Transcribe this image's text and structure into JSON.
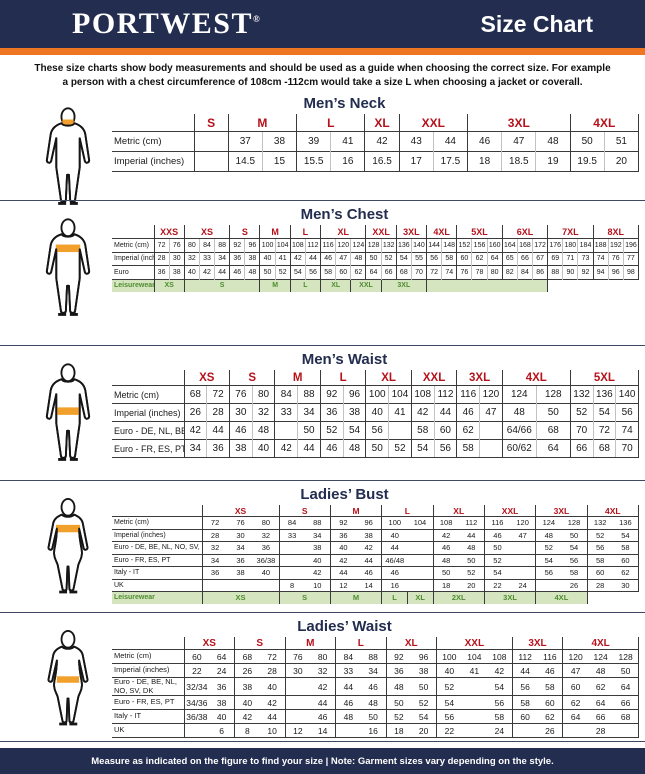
{
  "header": {
    "logo": "PORTWEST",
    "logo_reg": "®",
    "title": "Size Chart"
  },
  "intro": {
    "line1": "These size charts show body measurements and should be used as a guide when choosing the correct size. For example",
    "line2": "a person with a chest circumference of 108cm -112cm would take a size L when choosing a jacket or coverall."
  },
  "footer": {
    "text": "Measure as indicated on the figure to find your size  |  Note: Garment sizes vary depending on the style."
  },
  "colors": {
    "navy": "#232d4f",
    "orange": "#ee7623",
    "red": "#b6121b",
    "green_bg": "#d5e5c0",
    "green_text": "#4e8c2f",
    "band_orange": "#f2a02c"
  },
  "sections": [
    {
      "id": "mens-neck",
      "title": "Men’s Neck",
      "figure": "male",
      "band": "neck",
      "sub": true,
      "sizes": [
        {
          "label": "S",
          "span": 1
        },
        {
          "label": "M",
          "span": 2
        },
        {
          "label": "L",
          "span": 2
        },
        {
          "label": "XL",
          "span": 1
        },
        {
          "label": "XXL",
          "span": 2
        },
        {
          "label": "3XL",
          "span": 3
        },
        {
          "label": "4XL",
          "span": 2
        }
      ],
      "rows": [
        {
          "label": "Metric  (cm)",
          "cells": [
            "",
            "37",
            "38",
            "39",
            "41",
            "42",
            "43",
            "44",
            "46",
            "47",
            "48",
            "50",
            "51"
          ]
        },
        {
          "label": "Imperial (inches)",
          "cells": [
            "",
            "14.5",
            "15",
            "15.5",
            "16",
            "16.5",
            "17",
            "17.5",
            "18",
            "18.5",
            "19",
            "19.5",
            "20"
          ]
        }
      ]
    },
    {
      "id": "mens-chest",
      "title": "Men’s Chest",
      "figure": "male",
      "band": "chest",
      "sub": true,
      "sizes": [
        {
          "label": "XXS",
          "span": 2
        },
        {
          "label": "XS",
          "span": 3
        },
        {
          "label": "S",
          "span": 2
        },
        {
          "label": "M",
          "span": 2
        },
        {
          "label": "L",
          "span": 2
        },
        {
          "label": "XL",
          "span": 3
        },
        {
          "label": "XXL",
          "span": 2
        },
        {
          "label": "3XL",
          "span": 2
        },
        {
          "label": "4XL",
          "span": 2
        },
        {
          "label": "5XL",
          "span": 3
        },
        {
          "label": "6XL",
          "span": 3
        },
        {
          "label": "7XL",
          "span": 3
        },
        {
          "label": "8XL",
          "span": 3
        }
      ],
      "rows": [
        {
          "label": "Metric (cm)",
          "cells": [
            "72",
            "76",
            "80",
            "84",
            "88",
            "92",
            "96",
            "100",
            "104",
            "108",
            "112",
            "116",
            "120",
            "124",
            "128",
            "132",
            "136",
            "140",
            "144",
            "148",
            "152",
            "156",
            "160",
            "164",
            "168",
            "172",
            "176",
            "180",
            "184",
            "188",
            "192",
            "196"
          ]
        },
        {
          "label": "Imperial (inches)",
          "cells": [
            "28",
            "30",
            "32",
            "33",
            "34",
            "36",
            "38",
            "40",
            "41",
            "42",
            "44",
            "46",
            "47",
            "48",
            "50",
            "52",
            "54",
            "55",
            "56",
            "58",
            "60",
            "62",
            "64",
            "65",
            "66",
            "67",
            "69",
            "71",
            "73",
            "74",
            "76",
            "77"
          ]
        },
        {
          "label": "Euro",
          "cells": [
            "36",
            "38",
            "40",
            "42",
            "44",
            "46",
            "48",
            "50",
            "52",
            "54",
            "56",
            "58",
            "60",
            "62",
            "64",
            "66",
            "68",
            "70",
            "72",
            "74",
            "76",
            "78",
            "80",
            "82",
            "84",
            "86",
            "88",
            "90",
            "92",
            "94",
            "96",
            "98"
          ]
        }
      ],
      "leisure": {
        "label": "Leisurewear",
        "cells": [
          {
            "label": "XS",
            "span": 2
          },
          {
            "label": "S",
            "span": 5
          },
          {
            "label": "M",
            "span": 2
          },
          {
            "label": "L",
            "span": 2
          },
          {
            "label": "XL",
            "span": 2
          },
          {
            "label": "XXL",
            "span": 2
          },
          {
            "label": "3XL",
            "span": 3
          },
          {
            "label": "",
            "span": 8,
            "green": true
          },
          {
            "label": "",
            "span": 6
          }
        ]
      }
    },
    {
      "id": "mens-waist",
      "title": "Men’s Waist",
      "figure": "male",
      "band": "waist",
      "sub": true,
      "sizes": [
        {
          "label": "XS",
          "span": 2
        },
        {
          "label": "S",
          "span": 2
        },
        {
          "label": "M",
          "span": 2
        },
        {
          "label": "L",
          "span": 2
        },
        {
          "label": "XL",
          "span": 2
        },
        {
          "label": "XXL",
          "span": 2
        },
        {
          "label": "3XL",
          "span": 2
        },
        {
          "label": "4XL",
          "span": 2
        },
        {
          "label": "5XL",
          "span": 3
        }
      ],
      "rows": [
        {
          "label": "Metric  (cm)",
          "cells": [
            "68",
            "72",
            "76",
            "80",
            "84",
            "88",
            "92",
            "96",
            "100",
            "104",
            "108",
            "112",
            "116",
            "120",
            "124",
            "128",
            "132",
            "136",
            "140"
          ]
        },
        {
          "label": "Imperial (inches)",
          "cells": [
            "26",
            "28",
            "30",
            "32",
            "33",
            "34",
            "36",
            "38",
            "40",
            "41",
            "42",
            "44",
            "46",
            "47",
            "48",
            "50",
            "52",
            "54",
            "56"
          ]
        },
        {
          "label": "Euro - DE, NL, BE",
          "cells": [
            "42",
            "44",
            "46",
            "48",
            "",
            "50",
            "52",
            "54",
            "56",
            "",
            "58",
            "60",
            "62",
            "",
            "64/66",
            "68",
            "70",
            "72",
            "74"
          ]
        },
        {
          "label": "Euro - FR, ES, PT",
          "cells": [
            "34",
            "36",
            "38",
            "40",
            "42",
            "44",
            "46",
            "48",
            "50",
            "52",
            "54",
            "56",
            "58",
            "",
            "60/62",
            "64",
            "66",
            "68",
            "70"
          ]
        }
      ]
    },
    {
      "id": "ladies-bust",
      "title": "Ladies’ Bust",
      "figure": "female",
      "band": "bust",
      "sub": false,
      "sizes": [
        {
          "label": "XS",
          "span": 3
        },
        {
          "label": "S",
          "span": 2
        },
        {
          "label": "M",
          "span": 2
        },
        {
          "label": "L",
          "span": 2
        },
        {
          "label": "XL",
          "span": 2
        },
        {
          "label": "XXL",
          "span": 2
        },
        {
          "label": "3XL",
          "span": 2
        },
        {
          "label": "4XL",
          "span": 2
        }
      ],
      "rows": [
        {
          "label": "Metric  (cm)",
          "cells": [
            "72",
            "76",
            "80",
            "84",
            "88",
            "92",
            "96",
            "100",
            "104",
            "108",
            "112",
            "116",
            "120",
            "124",
            "128",
            "132",
            "136"
          ]
        },
        {
          "label": "Imperial (inches)",
          "cells": [
            "28",
            "30",
            "32",
            "33",
            "34",
            "36",
            "38",
            "40",
            "",
            "42",
            "44",
            "46",
            "47",
            "48",
            "50",
            "52",
            "54"
          ]
        },
        {
          "label": "Euro -  DE, BE, NL, NO, SV, DK",
          "cells": [
            "32",
            "34",
            "36",
            "",
            "38",
            "40",
            "42",
            "44",
            "",
            "46",
            "48",
            "50",
            "",
            "52",
            "54",
            "56",
            "58"
          ]
        },
        {
          "label": "Euro - FR, ES, PT",
          "cells": [
            "34",
            "36",
            "36/38",
            "",
            "40",
            "42",
            "44",
            "46/48",
            "",
            "48",
            "50",
            "52",
            "",
            "54",
            "56",
            "58",
            "60"
          ]
        },
        {
          "label": "Italy - IT",
          "cells": [
            "36",
            "38",
            "40",
            "",
            "42",
            "44",
            "46",
            "46",
            "",
            "50",
            "52",
            "54",
            "",
            "56",
            "58",
            "60",
            "62"
          ]
        },
        {
          "label": "UK",
          "cells": [
            "",
            "",
            "",
            "8",
            "10",
            "12",
            "14",
            "16",
            "",
            "18",
            "20",
            "22",
            "24",
            "",
            "26",
            "28",
            "30"
          ]
        }
      ],
      "leisure": {
        "label": "Leisurewear",
        "cells": [
          {
            "label": "XS",
            "span": 3
          },
          {
            "label": "S",
            "span": 2
          },
          {
            "label": "M",
            "span": 2
          },
          {
            "label": "L",
            "span": 1
          },
          {
            "label": "XL",
            "span": 1
          },
          {
            "label": "2XL",
            "span": 2
          },
          {
            "label": "3XL",
            "span": 2
          },
          {
            "label": "4XL",
            "span": 2
          },
          {
            "label": "",
            "span": 2
          }
        ]
      }
    },
    {
      "id": "ladies-waist",
      "title": "Ladies’ Waist",
      "figure": "female",
      "band": "waist",
      "sub": false,
      "sizes": [
        {
          "label": "XS",
          "span": 2
        },
        {
          "label": "S",
          "span": 2
        },
        {
          "label": "M",
          "span": 2
        },
        {
          "label": "L",
          "span": 2
        },
        {
          "label": "XL",
          "span": 2
        },
        {
          "label": "XXL",
          "span": 3
        },
        {
          "label": "3XL",
          "span": 2
        },
        {
          "label": "4XL",
          "span": 3
        }
      ],
      "rows": [
        {
          "label": "Metric  (cm)",
          "cells": [
            "60",
            "64",
            "68",
            "72",
            "76",
            "80",
            "84",
            "88",
            "92",
            "96",
            "100",
            "104",
            "108",
            "112",
            "116",
            "120",
            "124",
            "128"
          ]
        },
        {
          "label": "Imperial (inches)",
          "cells": [
            "22",
            "24",
            "26",
            "28",
            "30",
            "32",
            "33",
            "34",
            "36",
            "38",
            "40",
            "41",
            "42",
            "44",
            "46",
            "47",
            "48",
            "50"
          ]
        },
        {
          "label": "Euro - DE, BE, NL, NO, SV, DK",
          "cells": [
            "32/34",
            "36",
            "38",
            "40",
            "",
            "42",
            "44",
            "46",
            "48",
            "50",
            "52",
            "",
            "54",
            "56",
            "58",
            "60",
            "62",
            "64"
          ]
        },
        {
          "label": "Euro - FR, ES, PT",
          "cells": [
            "34/36",
            "38",
            "40",
            "42",
            "",
            "44",
            "46",
            "48",
            "50",
            "52",
            "54",
            "",
            "56",
            "58",
            "60",
            "62",
            "64",
            "66"
          ]
        },
        {
          "label": "Italy - IT",
          "cells": [
            "36/38",
            "40",
            "42",
            "44",
            "",
            "46",
            "48",
            "50",
            "52",
            "54",
            "56",
            "",
            "58",
            "60",
            "62",
            "64",
            "66",
            "68"
          ]
        },
        {
          "label": "UK",
          "cells": [
            "",
            "6",
            "8",
            "10",
            "12",
            "14",
            "",
            "16",
            "18",
            "20",
            "22",
            "",
            "24",
            "",
            "26",
            "",
            "28",
            ""
          ]
        }
      ]
    }
  ]
}
